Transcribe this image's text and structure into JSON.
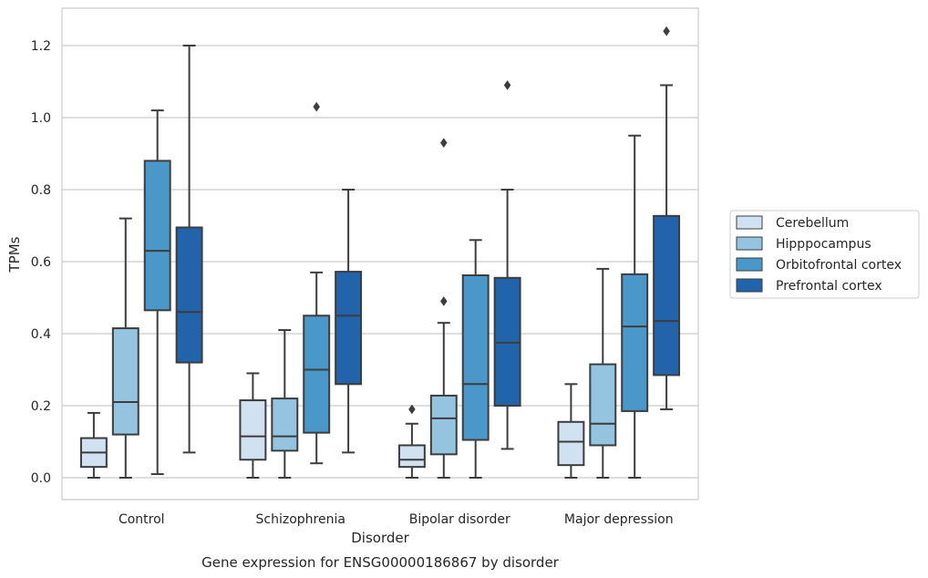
{
  "chart_data": {
    "type": "box",
    "title": "",
    "caption": "Gene expression for ENSG00000186867 by disorder",
    "xlabel": "Disorder",
    "ylabel": "TPMs",
    "ylim": [
      -0.06,
      1.3
    ],
    "yticks": [
      "0.0",
      "0.2",
      "0.4",
      "0.6",
      "0.8",
      "1.0",
      "1.2"
    ],
    "grid": true,
    "legend_position": "right",
    "categories": [
      "Control",
      "Schizophrenia",
      "Bipolar disorder",
      "Major depression"
    ],
    "series": [
      {
        "name": "Cerebellum",
        "color": "#d0e1f2",
        "boxes": [
          {
            "whislo": 0.0,
            "q1": 0.03,
            "med": 0.07,
            "q3": 0.11,
            "whishi": 0.18,
            "fliers": []
          },
          {
            "whislo": 0.0,
            "q1": 0.05,
            "med": 0.115,
            "q3": 0.215,
            "whishi": 0.29,
            "fliers": []
          },
          {
            "whislo": 0.0,
            "q1": 0.03,
            "med": 0.05,
            "q3": 0.09,
            "whishi": 0.15,
            "fliers": [
              0.19
            ]
          },
          {
            "whislo": 0.0,
            "q1": 0.035,
            "med": 0.1,
            "q3": 0.155,
            "whishi": 0.26,
            "fliers": []
          }
        ]
      },
      {
        "name": "Hipppocampus",
        "color": "#94c4df",
        "boxes": [
          {
            "whislo": 0.0,
            "q1": 0.12,
            "med": 0.21,
            "q3": 0.415,
            "whishi": 0.72,
            "fliers": []
          },
          {
            "whislo": 0.0,
            "q1": 0.075,
            "med": 0.115,
            "q3": 0.22,
            "whishi": 0.41,
            "fliers": []
          },
          {
            "whislo": 0.0,
            "q1": 0.065,
            "med": 0.165,
            "q3": 0.228,
            "whishi": 0.43,
            "fliers": [
              0.49,
              0.93
            ]
          },
          {
            "whislo": 0.0,
            "q1": 0.09,
            "med": 0.15,
            "q3": 0.315,
            "whishi": 0.58,
            "fliers": []
          }
        ]
      },
      {
        "name": "Orbitofrontal cortex",
        "color": "#4a98c9",
        "boxes": [
          {
            "whislo": 0.01,
            "q1": 0.465,
            "med": 0.63,
            "q3": 0.88,
            "whishi": 1.02,
            "fliers": []
          },
          {
            "whislo": 0.04,
            "q1": 0.125,
            "med": 0.3,
            "q3": 0.45,
            "whishi": 0.57,
            "fliers": [
              1.03
            ]
          },
          {
            "whislo": 0.0,
            "q1": 0.105,
            "med": 0.26,
            "q3": 0.562,
            "whishi": 0.66,
            "fliers": []
          },
          {
            "whislo": 0.0,
            "q1": 0.185,
            "med": 0.42,
            "q3": 0.565,
            "whishi": 0.95,
            "fliers": []
          }
        ]
      },
      {
        "name": "Prefrontal cortex",
        "color": "#2164ab",
        "boxes": [
          {
            "whislo": 0.07,
            "q1": 0.32,
            "med": 0.46,
            "q3": 0.695,
            "whishi": 1.2,
            "fliers": []
          },
          {
            "whislo": 0.07,
            "q1": 0.26,
            "med": 0.45,
            "q3": 0.572,
            "whishi": 0.8,
            "fliers": []
          },
          {
            "whislo": 0.08,
            "q1": 0.2,
            "med": 0.375,
            "q3": 0.555,
            "whishi": 0.8,
            "fliers": [
              1.09
            ]
          },
          {
            "whislo": 0.19,
            "q1": 0.285,
            "med": 0.435,
            "q3": 0.727,
            "whishi": 1.09,
            "fliers": [
              1.24
            ]
          }
        ]
      }
    ]
  }
}
